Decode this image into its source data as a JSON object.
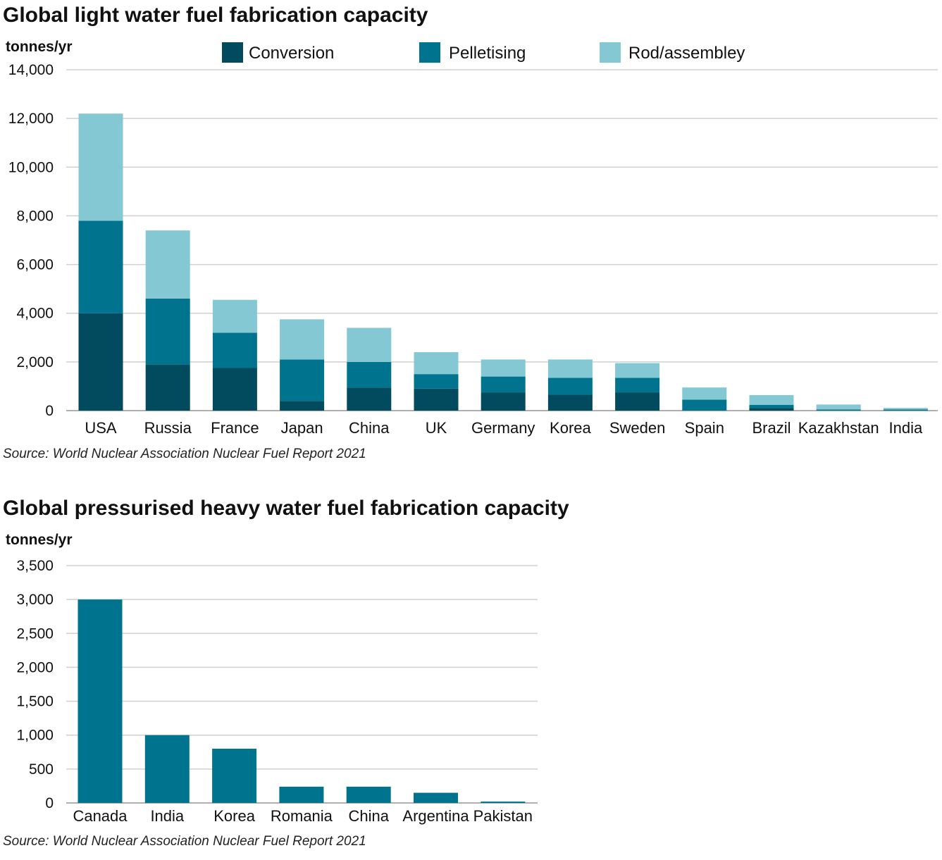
{
  "colors": {
    "conversion": "#024a5e",
    "pelletising": "#00748e",
    "rod_assembly": "#84c8d4",
    "phwr": "#00748e"
  },
  "chart_data": [
    {
      "type": "bar",
      "stacked": true,
      "title": "Global light water fuel fabrication capacity",
      "ylabel": "tonnes/yr",
      "ylim": [
        0,
        14000
      ],
      "yticks": [
        0,
        2000,
        4000,
        6000,
        8000,
        10000,
        12000,
        14000
      ],
      "ytick_labels": [
        "0",
        "2,000",
        "4,000",
        "6,000",
        "8,000",
        "10,000",
        "12,000",
        "14,000"
      ],
      "grid": true,
      "legend_position": "top",
      "categories": [
        "USA",
        "Russia",
        "France",
        "Japan",
        "China",
        "UK",
        "Germany",
        "Korea",
        "Sweden",
        "Spain",
        "Brazil",
        "Kazakhstan",
        "India"
      ],
      "series": [
        {
          "name": "Conversion",
          "color_key": "conversion",
          "values": [
            4000,
            1900,
            1750,
            400,
            950,
            900,
            750,
            650,
            750,
            0,
            100,
            0,
            0
          ]
        },
        {
          "name": "Pelletising",
          "color_key": "pelletising",
          "values": [
            3800,
            2700,
            1450,
            1700,
            1050,
            600,
            650,
            700,
            600,
            450,
            140,
            50,
            50
          ]
        },
        {
          "name": "Rod/assembley",
          "color_key": "rod_assembly",
          "values": [
            4400,
            2800,
            1350,
            1650,
            1400,
            900,
            700,
            750,
            600,
            500,
            400,
            200,
            60
          ]
        }
      ],
      "source": "Source: World Nuclear Association Nuclear Fuel Report 2021"
    },
    {
      "type": "bar",
      "stacked": false,
      "title": "Global pressurised heavy water fuel fabrication capacity",
      "ylabel": "tonnes/yr",
      "ylim": [
        0,
        3500
      ],
      "yticks": [
        0,
        500,
        1000,
        1500,
        2000,
        2500,
        3000,
        3500
      ],
      "ytick_labels": [
        "0",
        "500",
        "1,000",
        "1,500",
        "2,000",
        "2,500",
        "3,000",
        "3,500"
      ],
      "grid": true,
      "categories": [
        "Canada",
        "India",
        "Korea",
        "Romania",
        "China",
        "Argentina",
        "Pakistan"
      ],
      "series": [
        {
          "color_key": "phwr",
          "values": [
            3000,
            1000,
            800,
            240,
            240,
            150,
            20
          ]
        }
      ],
      "source": "Source: World Nuclear Association Nuclear Fuel Report 2021"
    }
  ]
}
